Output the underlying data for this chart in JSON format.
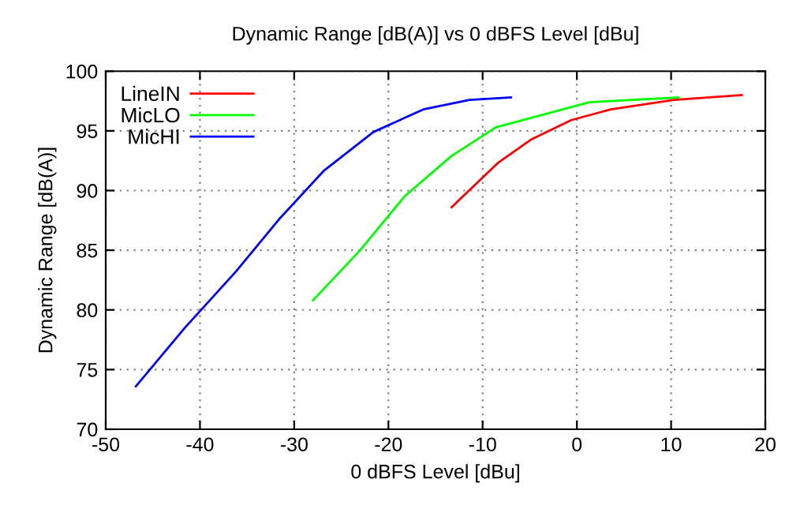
{
  "chart_data": {
    "type": "line",
    "title": "Dynamic Range [dB(A)] vs 0 dBFS Level [dBu]",
    "xlabel": "0 dBFS Level [dBu]",
    "ylabel": "Dynamic Range [dB(A)]",
    "xlim": [
      -50,
      20
    ],
    "xticks": [
      -50,
      -40,
      -30,
      -20,
      -10,
      0,
      10,
      20
    ],
    "ylim": [
      70,
      100
    ],
    "yticks": [
      70,
      75,
      80,
      85,
      90,
      95,
      100
    ],
    "grid": true,
    "legend": "top left",
    "line_style": "solid",
    "marker": "none",
    "series": [
      {
        "name": "LineIN",
        "color": "#ff0000",
        "x": [
          -13.3,
          -8.4,
          -4.8,
          -0.6,
          3.6,
          10.3,
          17.5
        ],
        "values": [
          88.6,
          92.3,
          94.3,
          95.9,
          96.8,
          97.6,
          98.0
        ]
      },
      {
        "name": "MicLO",
        "color": "#00ff00",
        "x": [
          -28.0,
          -23.0,
          -18.3,
          -13.3,
          -8.6,
          1.3,
          10.8
        ],
        "values": [
          80.8,
          85.0,
          89.5,
          92.9,
          95.3,
          97.4,
          97.8
        ]
      },
      {
        "name": "MicHI",
        "color": "#0000ff",
        "x": [
          -46.8,
          -41.6,
          -36.2,
          -31.6,
          -26.8,
          -21.6,
          -16.3,
          -11.4,
          -7.0
        ],
        "values": [
          73.6,
          78.5,
          83.2,
          87.6,
          91.7,
          94.9,
          96.8,
          97.6,
          97.8
        ]
      }
    ]
  }
}
